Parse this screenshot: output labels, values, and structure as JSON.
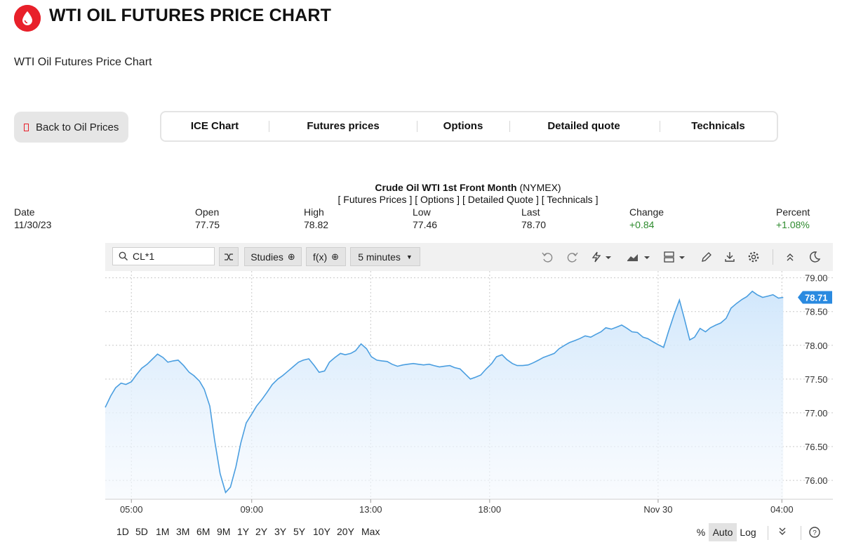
{
  "header": {
    "title": "WTI OIL FUTURES PRICE CHART",
    "subtitle": "WTI Oil Futures Price Chart",
    "back_label": "Back to Oil Prices",
    "tabs": [
      "ICE Chart",
      "Futures prices",
      "Options",
      "Detailed quote",
      "Technicals"
    ],
    "brand_color": "#e8202a"
  },
  "quote": {
    "title": "Crude Oil WTI 1st Front Month",
    "exchange": "(NYMEX)",
    "links": [
      "[ Futures Prices ]",
      "[ Options ]",
      "[ Detailed Quote ]",
      "[ Technicals ]"
    ],
    "date_label": "Date",
    "date": "11/30/23",
    "open_label": "Open",
    "open": "77.75",
    "high_label": "High",
    "high": "78.82",
    "low_label": "Low",
    "low": "77.46",
    "last_label": "Last",
    "last": "78.70",
    "change_label": "Change",
    "change": "+0.84",
    "percent_label": "Percent",
    "percent": "+1.08%"
  },
  "toolbar": {
    "symbol": "CL*1",
    "studies_label": "Studies",
    "fx_label": "f(x)",
    "interval_label": "5 minutes"
  },
  "ranges": [
    "1D",
    "5D",
    "1M",
    "3M",
    "6M",
    "9M",
    "1Y",
    "2Y",
    "3Y",
    "5Y",
    "10Y",
    "20Y",
    "Max"
  ],
  "scale_buttons": [
    "%",
    "Auto",
    "Log"
  ],
  "chart_data": {
    "type": "area",
    "x_ticks": [
      "05:00",
      "09:00",
      "13:00",
      "18:00",
      "Nov 30",
      "04:00"
    ],
    "y_ticks": [
      "79.00",
      "78.50",
      "78.00",
      "77.50",
      "77.00",
      "76.50",
      "76.00"
    ],
    "ylim": [
      75.72,
      79.1
    ],
    "last_value": "78.71",
    "grid": true,
    "line_color": "#4a9ee0",
    "fill_color": "#d3e8fb",
    "series": [
      {
        "x": [
          0,
          0.8,
          1.5,
          2.3,
          3.0,
          3.8,
          4.5,
          5.3,
          6.1,
          6.9,
          7.6,
          8.4,
          9.1,
          9.9,
          10.6,
          11.4,
          12.2,
          12.9,
          13.7,
          14.4,
          15.2,
          15.9,
          16.7,
          17.5,
          18.2,
          19.0,
          19.7,
          20.5,
          21.3,
          22.0,
          22.8,
          23.5,
          24.3,
          25.1,
          25.8,
          26.6,
          27.3,
          28.1,
          28.8,
          29.6,
          30.4,
          31.1,
          31.9,
          32.6,
          33.4,
          34.2,
          34.9,
          35.7,
          36.4,
          37.2,
          38.0,
          38.7,
          39.5,
          40.2,
          41.0,
          41.7,
          42.5,
          43.3,
          44.0,
          44.8,
          45.5,
          46.3,
          47.1,
          47.8,
          48.6,
          49.3,
          50.1,
          50.8,
          51.6,
          52.4,
          53.1,
          53.9,
          54.6,
          55.4,
          56.2,
          56.9,
          57.7,
          58.4,
          59.2,
          59.9,
          60.7,
          61.5,
          62.2,
          63.0,
          63.7,
          64.5,
          65.3,
          66.0,
          66.8,
          67.5,
          68.3,
          69.0,
          69.8,
          70.6,
          71.3,
          72.1,
          72.8,
          73.6,
          74.4,
          75.1,
          75.9,
          76.6,
          77.4,
          78.2,
          78.9,
          79.7,
          80.4,
          81.2,
          81.9,
          82.7,
          83.5,
          84.2,
          85.0,
          85.7,
          86.5,
          87.3,
          88.0,
          88.8,
          89.5,
          90.3,
          91.0,
          91.8,
          92.6,
          93.3,
          94.1,
          94.8,
          95.6,
          96.4,
          97.1,
          97.9,
          98.6
        ],
        "values": [
          77.08,
          77.25,
          77.37,
          77.44,
          77.42,
          77.46,
          77.56,
          77.66,
          77.72,
          77.8,
          77.87,
          77.82,
          77.75,
          77.77,
          77.78,
          77.7,
          77.6,
          77.55,
          77.47,
          77.35,
          77.1,
          76.6,
          76.1,
          75.82,
          75.9,
          76.2,
          76.55,
          76.85,
          76.98,
          77.1,
          77.2,
          77.3,
          77.42,
          77.5,
          77.55,
          77.62,
          77.68,
          77.75,
          77.78,
          77.8,
          77.7,
          77.6,
          77.62,
          77.75,
          77.82,
          77.88,
          77.86,
          77.88,
          77.92,
          78.02,
          77.95,
          77.83,
          77.78,
          77.77,
          77.76,
          77.72,
          77.69,
          77.71,
          77.72,
          77.73,
          77.72,
          77.71,
          77.72,
          77.7,
          77.68,
          77.69,
          77.7,
          77.67,
          77.65,
          77.57,
          77.5,
          77.53,
          77.56,
          77.65,
          77.73,
          77.83,
          77.86,
          77.79,
          77.73,
          77.7,
          77.7,
          77.71,
          77.74,
          77.78,
          77.82,
          77.85,
          77.88,
          77.95,
          78.0,
          78.04,
          78.07,
          78.1,
          78.14,
          78.12,
          78.16,
          78.2,
          78.26,
          78.24,
          78.27,
          78.3,
          78.25,
          78.2,
          78.19,
          78.12,
          78.1,
          78.05,
          78.01,
          77.97,
          78.2,
          78.45,
          78.67,
          78.4,
          78.08,
          78.12,
          78.25,
          78.2,
          78.26,
          78.3,
          78.33,
          78.4,
          78.55,
          78.62,
          78.68,
          78.72,
          78.8,
          78.75,
          78.71,
          78.73,
          78.75,
          78.7,
          78.71
        ]
      }
    ]
  }
}
